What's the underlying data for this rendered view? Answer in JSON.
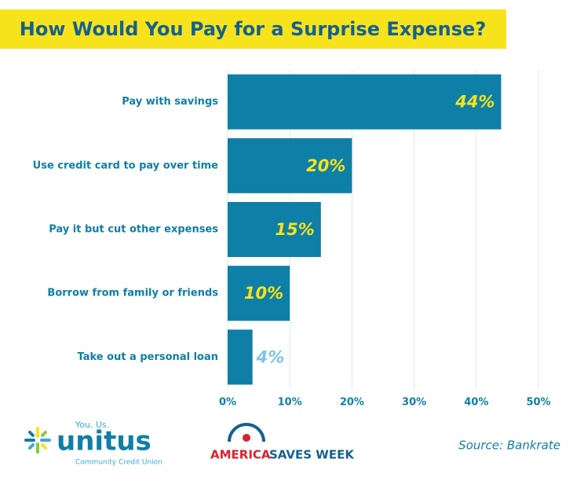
{
  "chart_data": {
    "type": "bar",
    "orientation": "horizontal",
    "title": "How Would You Pay for a Surprise Expense?",
    "categories": [
      "Pay with savings",
      "Use credit card to pay over time",
      "Pay it but cut other expenses",
      "Borrow from family or friends",
      "Take out a personal loan"
    ],
    "values": [
      44,
      20,
      15,
      10,
      4
    ],
    "value_labels": [
      "44%",
      "20%",
      "15%",
      "10%",
      "4%"
    ],
    "color": "#0e7fa6",
    "xlim": [
      0,
      50
    ],
    "xticks": [
      {
        "value": 0,
        "label": "0%"
      },
      {
        "value": 10,
        "label": "10%"
      },
      {
        "value": 20,
        "label": "20%"
      },
      {
        "value": 30,
        "label": "30%"
      },
      {
        "value": 40,
        "label": "40%"
      },
      {
        "value": 50,
        "label": "50%"
      }
    ],
    "grid": true,
    "source": "Source: Bankrate"
  },
  "logos": {
    "unitus_tagline": "You. Us.",
    "unitus_name": "unitus",
    "unitus_sub": "Community Credit Union",
    "asw_1": "AMERICA",
    "asw_2": "SAVES WEEK"
  }
}
